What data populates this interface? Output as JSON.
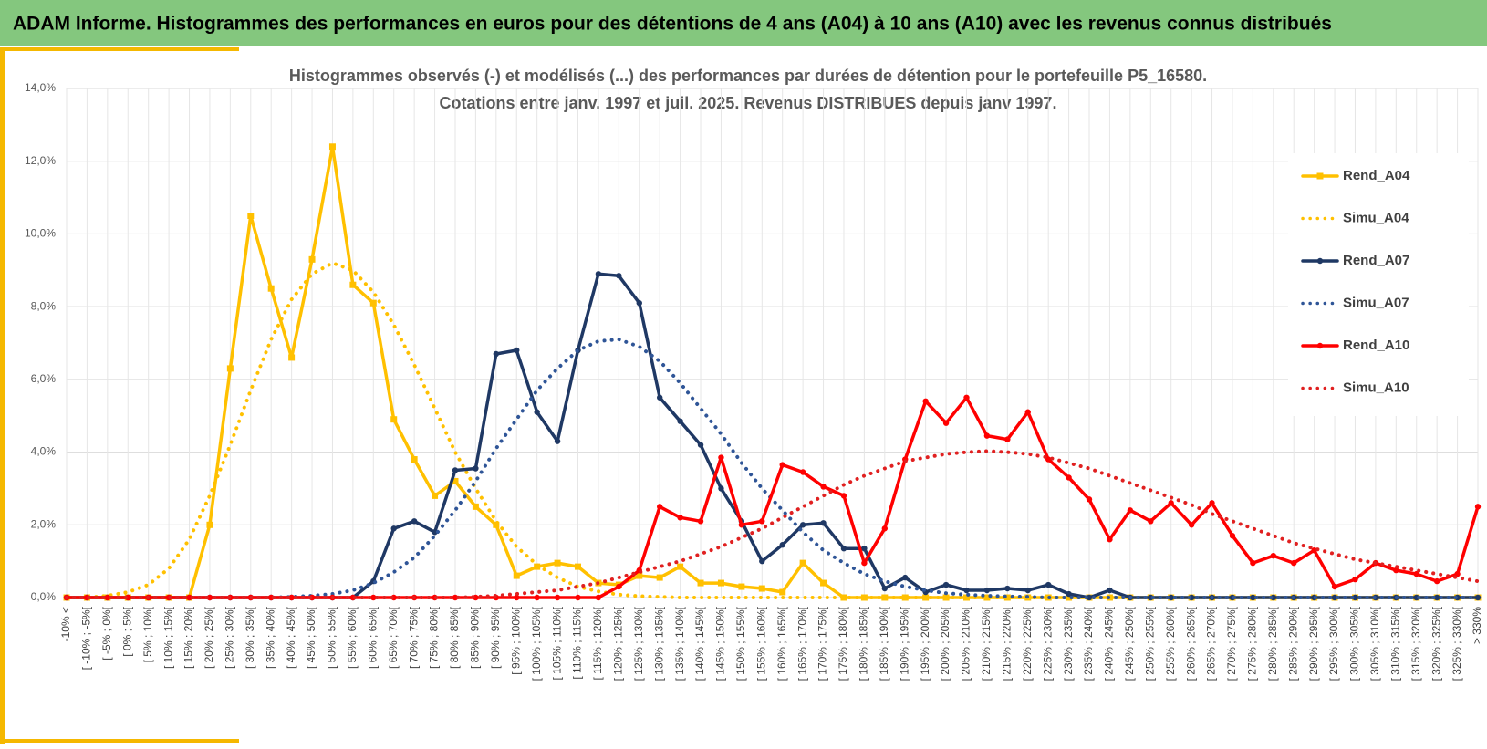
{
  "header": {
    "title": "ADAM Informe. Histogrammes des performances en euros pour des détentions de 4 ans (A04) à 10 ans (A10) avec les revenus connus distribués"
  },
  "chart_data": {
    "type": "line",
    "title": "Histogrammes observés (-) et modélisés (...) des performances par durées de détention pour le portefeuille P5_16580.",
    "subtitle": "Cotations entre janv. 1997 et juil. 2025. Revenus DISTRIBUES depuis janv 1997.",
    "categories": [
      "-10% <",
      "[ -10% ; -5%[",
      "[ -5% ; 0%[",
      "[ 0% ; 5%[",
      "[ 5% ; 10%[",
      "[ 10% ; 15%[",
      "[ 15% ; 20%[",
      "[ 20% ; 25%[",
      "[ 25% ; 30%[",
      "[ 30% ; 35%[",
      "[ 35% ; 40%[",
      "[ 40% ; 45%[",
      "[ 45% ; 50%[",
      "[ 50% ; 55%[",
      "[ 55% ; 60%[",
      "[ 60% ; 65%[",
      "[ 65% ; 70%[",
      "[ 70% ; 75%[",
      "[ 75% ; 80%[",
      "[ 80% ; 85%[",
      "[ 85% ; 90%[",
      "[ 90% ; 95%[",
      "[ 95% ; 100%[",
      "[ 100% ; 105%[",
      "[ 105% ; 110%[",
      "[ 110% ; 115%[",
      "[ 115% ; 120%[",
      "[ 120% ; 125%[",
      "[ 125% ; 130%[",
      "[ 130% ; 135%[",
      "[ 135% ; 140%[",
      "[ 140% ; 145%[",
      "[ 145% ; 150%[",
      "[ 150% ; 155%[",
      "[ 155% ; 160%[",
      "[ 160% ; 165%[",
      "[ 165% ; 170%[",
      "[ 170% ; 175%[",
      "[ 175% ; 180%[",
      "[ 180% ; 185%[",
      "[ 185% ; 190%[",
      "[ 190% ; 195%[",
      "[ 195% ; 200%[",
      "[ 200% ; 205%[",
      "[ 205% ; 210%[",
      "[ 210% ; 215%[",
      "[ 215% ; 220%[",
      "[ 220% ; 225%[",
      "[ 225% ; 230%[",
      "[ 230% ; 235%[",
      "[ 235% ; 240%[",
      "[ 240% ; 245%[",
      "[ 245% ; 250%[",
      "[ 250% ; 255%[",
      "[ 255% ; 260%[",
      "[ 260% ; 265%[",
      "[ 265% ; 270%[",
      "[ 270% ; 275%[",
      "[ 275% ; 280%[",
      "[ 280% ; 285%[",
      "[ 285% ; 290%[",
      "[ 290% ; 295%[",
      "[ 295% ; 300%[",
      "[ 300% ; 305%[",
      "[ 305% ; 310%[",
      "[ 310% ; 315%[",
      "[ 315% ; 320%[",
      "[ 320% ; 325%[",
      "[ 325% ; 330%[",
      "> 330%"
    ],
    "series": [
      {
        "name": "Rend_A04",
        "color": "#ffc000",
        "marker": "square",
        "dash": "solid",
        "values": [
          0,
          0,
          0,
          0,
          0,
          0,
          0,
          2.0,
          6.3,
          10.5,
          8.5,
          6.6,
          9.3,
          12.4,
          8.6,
          8.1,
          4.9,
          3.8,
          2.8,
          3.2,
          2.5,
          2.0,
          0.6,
          0.85,
          0.95,
          0.85,
          0.4,
          0.35,
          0.6,
          0.55,
          0.85,
          0.4,
          0.4,
          0.3,
          0.25,
          0.15,
          0.95,
          0.4,
          0,
          0,
          0,
          0,
          0,
          0,
          0,
          0,
          0,
          0,
          0,
          0,
          0,
          0,
          0,
          0,
          0,
          0,
          0,
          0,
          0,
          0,
          0,
          0,
          0,
          0,
          0,
          0,
          0,
          0,
          0,
          0
        ]
      },
      {
        "name": "Simu_A04",
        "color": "#ffc000",
        "marker": null,
        "dash": "dotted",
        "values": [
          0,
          0,
          0.05,
          0.15,
          0.35,
          0.8,
          1.6,
          2.8,
          4.2,
          5.7,
          7.1,
          8.2,
          8.9,
          9.2,
          9.0,
          8.4,
          7.5,
          6.4,
          5.2,
          4.0,
          3.0,
          2.1,
          1.4,
          0.9,
          0.55,
          0.3,
          0.17,
          0.08,
          0.04,
          0.02,
          0,
          0,
          0,
          0,
          0,
          0,
          0,
          0,
          0,
          0,
          0,
          0,
          0,
          0,
          0,
          0,
          0,
          0,
          0,
          0,
          0,
          0,
          0,
          0,
          0,
          0,
          0,
          0,
          0,
          0,
          0,
          0,
          0,
          0,
          0,
          0,
          0,
          0,
          0,
          0
        ]
      },
      {
        "name": "Rend_A07",
        "color": "#1f3864",
        "marker": "circle",
        "dash": "solid",
        "values": [
          0,
          0,
          0,
          0,
          0,
          0,
          0,
          0,
          0,
          0,
          0,
          0,
          0,
          0,
          0,
          0.45,
          1.9,
          2.1,
          1.8,
          3.5,
          3.55,
          6.7,
          6.8,
          5.1,
          4.3,
          6.8,
          8.9,
          8.85,
          8.1,
          5.5,
          4.85,
          4.2,
          3.0,
          2.1,
          1.0,
          1.45,
          2.0,
          2.05,
          1.35,
          1.35,
          0.25,
          0.55,
          0.15,
          0.35,
          0.2,
          0.2,
          0.25,
          0.2,
          0.35,
          0.1,
          0,
          0.2,
          0,
          0,
          0,
          0,
          0,
          0,
          0,
          0,
          0,
          0,
          0,
          0,
          0,
          0,
          0,
          0,
          0,
          0
        ]
      },
      {
        "name": "Simu_A07",
        "color": "#2f5597",
        "marker": null,
        "dash": "dotted",
        "values": [
          0,
          0,
          0,
          0,
          0,
          0,
          0,
          0,
          0,
          0,
          0,
          0.02,
          0.05,
          0.1,
          0.2,
          0.4,
          0.7,
          1.1,
          1.7,
          2.4,
          3.2,
          4.1,
          4.9,
          5.7,
          6.3,
          6.8,
          7.05,
          7.1,
          6.9,
          6.5,
          5.9,
          5.2,
          4.5,
          3.7,
          3.0,
          2.4,
          1.8,
          1.3,
          0.95,
          0.65,
          0.45,
          0.3,
          0.2,
          0.12,
          0.08,
          0.05,
          0.03,
          0.02,
          0,
          0,
          0,
          0,
          0,
          0,
          0,
          0,
          0,
          0,
          0,
          0,
          0,
          0,
          0,
          0,
          0,
          0,
          0,
          0,
          0,
          0
        ]
      },
      {
        "name": "Rend_A10",
        "color": "#ff0000",
        "marker": "circle",
        "dash": "solid",
        "values": [
          0,
          0,
          0,
          0,
          0,
          0,
          0,
          0,
          0,
          0,
          0,
          0,
          0,
          0,
          0,
          0,
          0,
          0,
          0,
          0,
          0,
          0,
          0,
          0,
          0,
          0,
          0,
          0.3,
          0.75,
          2.5,
          2.2,
          2.1,
          3.85,
          2.0,
          2.1,
          3.65,
          3.45,
          3.05,
          2.8,
          0.95,
          1.9,
          3.8,
          5.4,
          4.8,
          5.5,
          4.45,
          4.35,
          5.1,
          3.8,
          3.3,
          2.7,
          1.6,
          2.4,
          2.1,
          2.6,
          2.0,
          2.6,
          1.7,
          0.95,
          1.15,
          0.95,
          1.3,
          0.3,
          0.5,
          0.95,
          0.75,
          0.65,
          0.45,
          0.65,
          2.5
        ]
      },
      {
        "name": "Simu_A10",
        "color": "#e02020",
        "marker": null,
        "dash": "dotted",
        "values": [
          0,
          0,
          0,
          0,
          0,
          0,
          0,
          0,
          0,
          0,
          0,
          0,
          0,
          0,
          0,
          0,
          0,
          0,
          0,
          0,
          0.02,
          0.05,
          0.1,
          0.15,
          0.2,
          0.3,
          0.4,
          0.55,
          0.7,
          0.85,
          1.0,
          1.2,
          1.4,
          1.65,
          1.9,
          2.2,
          2.5,
          2.8,
          3.1,
          3.35,
          3.55,
          3.75,
          3.85,
          3.95,
          4.0,
          4.03,
          4.0,
          3.95,
          3.85,
          3.7,
          3.55,
          3.35,
          3.15,
          2.95,
          2.75,
          2.55,
          2.3,
          2.1,
          1.9,
          1.7,
          1.5,
          1.35,
          1.2,
          1.05,
          0.95,
          0.85,
          0.75,
          0.65,
          0.55,
          0.45
        ]
      }
    ],
    "ylim": [
      0,
      14
    ],
    "yticks": [
      {
        "value": 0,
        "label": "0,0%"
      },
      {
        "value": 2,
        "label": "2,0%"
      },
      {
        "value": 4,
        "label": "4,0%"
      },
      {
        "value": 6,
        "label": "6,0%"
      },
      {
        "value": 8,
        "label": "8,0%"
      },
      {
        "value": 10,
        "label": "10,0%"
      },
      {
        "value": 12,
        "label": "12,0%"
      },
      {
        "value": 14,
        "label": "14,0%"
      }
    ],
    "grid": true,
    "legend": "right"
  }
}
